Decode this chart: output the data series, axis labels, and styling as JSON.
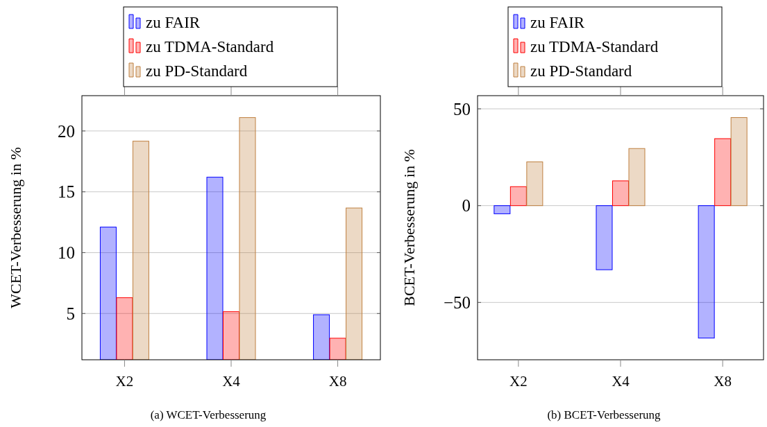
{
  "chart_data": [
    {
      "type": "bar",
      "categories": [
        "X2",
        "X4",
        "X8"
      ],
      "ylabel": "WCET-Verbesserung in %",
      "ylim": [
        1.2,
        22.9
      ],
      "yticks": [
        5,
        10,
        15,
        20
      ],
      "grid": "y",
      "legend": "top",
      "annotations": [
        "(a) WCET-Verbesserung"
      ],
      "series": [
        {
          "name": "zu FAIR",
          "color": "#0000ff",
          "values": [
            12.1,
            16.2,
            4.9
          ]
        },
        {
          "name": "zu TDMA-Standard",
          "color": "#ff0000",
          "values": [
            6.3,
            5.15,
            2.97
          ]
        },
        {
          "name": "zu PD-Standard",
          "color": "#bf8040",
          "values": [
            19.16,
            21.1,
            13.67
          ]
        }
      ]
    },
    {
      "type": "bar",
      "categories": [
        "X2",
        "X4",
        "X8"
      ],
      "ylabel": "BCET-Verbesserung in %",
      "ylim": [
        -79.6,
        56.8
      ],
      "yticks": [
        -50,
        0,
        50
      ],
      "grid": "y",
      "legend": "top",
      "annotations": [
        "(b) BCET-Verbesserung"
      ],
      "series": [
        {
          "name": "zu FAIR",
          "color": "#0000ff",
          "values": [
            -4.2,
            -33.1,
            -68.4
          ]
        },
        {
          "name": "zu TDMA-Standard",
          "color": "#ff0000",
          "values": [
            9.8,
            12.8,
            34.6
          ]
        },
        {
          "name": "zu PD-Standard",
          "color": "#bf8040",
          "values": [
            22.6,
            29.5,
            45.5
          ]
        }
      ]
    }
  ]
}
